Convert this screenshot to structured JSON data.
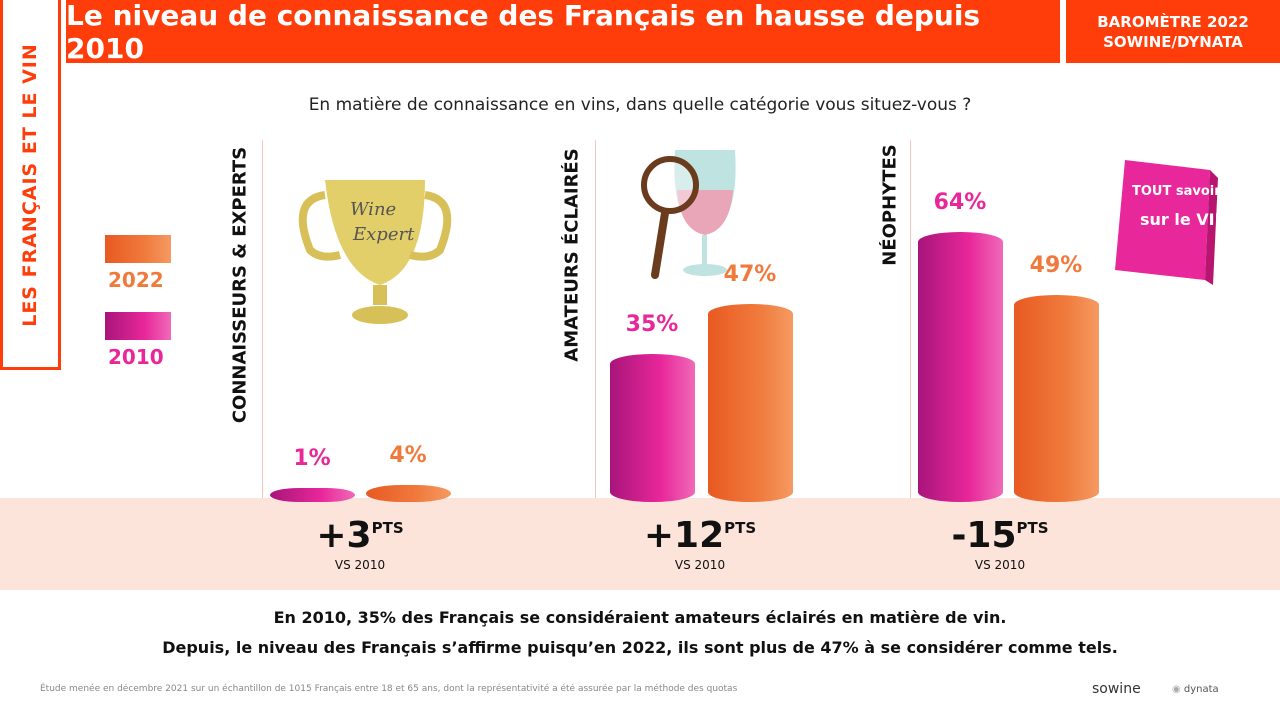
{
  "header": {
    "title": "Le niveau de connaissance des Français en hausse depuis 2010",
    "badge_line1": "BAROMÈTRE 2022",
    "badge_line2": "SOWINE/DYNATA",
    "side_label": "LES FRANÇAIS ET LE VIN"
  },
  "question": "En matière de connaissance en vins, dans quelle catégorie vous situez-vous ?",
  "legend": {
    "y2022": "2022",
    "y2010": "2010"
  },
  "colors": {
    "brand": "#ff3d0a",
    "series_2010": "#e8279a",
    "series_2022": "#f07a3c",
    "band": "#fce4db"
  },
  "chart_data": {
    "type": "bar",
    "categories": [
      "CONNAISSEURS & EXPERTS",
      "AMATEURS ÉCLAIRÉS",
      "NÉOPHYTES"
    ],
    "series": [
      {
        "name": "2010",
        "values": [
          1,
          35,
          64
        ]
      },
      {
        "name": "2022",
        "values": [
          4,
          47,
          49
        ]
      }
    ],
    "labels": {
      "2010": [
        "1%",
        "35%",
        "64%"
      ],
      "2022": [
        "4%",
        "47%",
        "49%"
      ]
    },
    "deltas": [
      {
        "value": "+3",
        "unit": "PTS",
        "note": "VS 2010"
      },
      {
        "value": "+12",
        "unit": "PTS",
        "note": "VS 2010"
      },
      {
        "value": "-15",
        "unit": "PTS",
        "note": "VS 2010"
      }
    ],
    "legend": "left",
    "ylim": [
      0,
      64
    ]
  },
  "illustrations": {
    "trophy_text": "Wine Expert",
    "book_text": "TOUT SAVOIR SUR LE VIN"
  },
  "conclusion": {
    "line1": "En 2010, 35% des Français se considéraient amateurs éclairés en matière de vin.",
    "line2": "Depuis, le niveau des Français s’affirme puisqu’en 2022, ils sont plus de 47% à se considérer comme tels."
  },
  "footer": {
    "note": "Étude menée en décembre 2021 sur un échantillon de 1015 Français entre 18 et 65 ans, dont la représentativité a été assurée par la méthode des quotas",
    "logo1": "sowine",
    "logo2": "dynata"
  }
}
